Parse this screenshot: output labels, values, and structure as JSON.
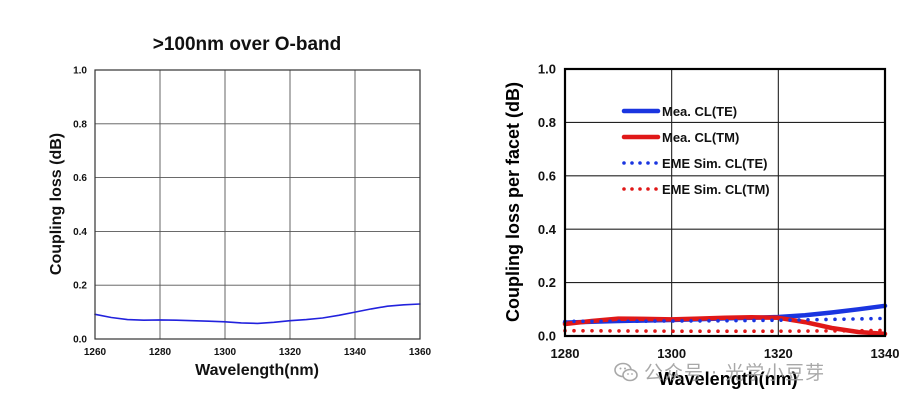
{
  "chart_data": [
    {
      "type": "line",
      "title": ">100nm over O-band",
      "xlabel": "Wavelength(nm)",
      "ylabel": "Coupling loss (dB)",
      "xlim": [
        1260,
        1360
      ],
      "ylim": [
        0,
        1.0
      ],
      "xticks": [
        "1260",
        "1280",
        "1300",
        "1320",
        "1340",
        "1360"
      ],
      "yticks": [
        "0.0",
        "0.2",
        "0.4",
        "0.6",
        "0.8",
        "1.0"
      ],
      "grid": true,
      "series": [
        {
          "name": "Coupling loss",
          "color": "#2222dd",
          "style": "solid",
          "x": [
            1260,
            1265,
            1270,
            1275,
            1280,
            1285,
            1290,
            1295,
            1300,
            1305,
            1310,
            1315,
            1320,
            1325,
            1330,
            1335,
            1340,
            1345,
            1350,
            1355,
            1360
          ],
          "y": [
            0.092,
            0.08,
            0.072,
            0.07,
            0.071,
            0.07,
            0.068,
            0.066,
            0.064,
            0.06,
            0.058,
            0.062,
            0.068,
            0.072,
            0.078,
            0.088,
            0.1,
            0.112,
            0.122,
            0.127,
            0.13
          ]
        }
      ]
    },
    {
      "type": "line",
      "title": "",
      "xlabel": "Wavelength(nm)",
      "ylabel": "Coupling loss per facet (dB)",
      "xlim": [
        1280,
        1340
      ],
      "ylim": [
        0,
        1.0
      ],
      "xticks": [
        "1280",
        "1300",
        "1320",
        "1340"
      ],
      "yticks": [
        "0.0",
        "0.2",
        "0.4",
        "0.6",
        "0.8",
        "1.0"
      ],
      "grid": true,
      "legend_position": "top-left",
      "series": [
        {
          "name": "Mea. CL(TE)",
          "color": "#1a35e0",
          "style": "solid",
          "x": [
            1280,
            1285,
            1290,
            1295,
            1300,
            1305,
            1310,
            1315,
            1320,
            1325,
            1330,
            1335,
            1340
          ],
          "y": [
            0.05,
            0.053,
            0.056,
            0.058,
            0.06,
            0.063,
            0.066,
            0.068,
            0.071,
            0.078,
            0.088,
            0.1,
            0.113
          ]
        },
        {
          "name": "Mea. CL(TM)",
          "color": "#e01818",
          "style": "solid",
          "x": [
            1280,
            1285,
            1290,
            1295,
            1300,
            1305,
            1310,
            1315,
            1320,
            1325,
            1330,
            1335,
            1340
          ],
          "y": [
            0.045,
            0.056,
            0.065,
            0.064,
            0.062,
            0.065,
            0.068,
            0.07,
            0.068,
            0.052,
            0.03,
            0.015,
            0.008
          ]
        },
        {
          "name": "EME Sim. CL(TE)",
          "color": "#1a35e0",
          "style": "dotted",
          "x": [
            1280,
            1290,
            1300,
            1310,
            1320,
            1330,
            1340
          ],
          "y": [
            0.055,
            0.055,
            0.056,
            0.057,
            0.059,
            0.062,
            0.066
          ]
        },
        {
          "name": "EME Sim. CL(TM)",
          "color": "#e01818",
          "style": "dotted",
          "x": [
            1280,
            1290,
            1300,
            1310,
            1320,
            1330,
            1340
          ],
          "y": [
            0.02,
            0.019,
            0.018,
            0.018,
            0.018,
            0.019,
            0.021
          ]
        }
      ]
    }
  ],
  "watermark": {
    "icon": "wechat-icon",
    "text": "公众号 · 光学小豆芽"
  }
}
